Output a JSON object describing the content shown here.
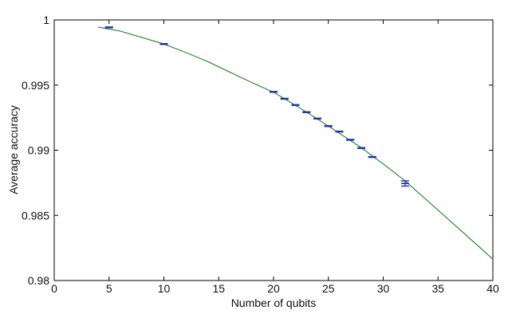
{
  "chart_data": {
    "type": "line",
    "title": "",
    "xlabel": "Number of qubits",
    "ylabel": "Average accuracy",
    "xlim": [
      0,
      40
    ],
    "ylim": [
      0.98,
      1.0
    ],
    "x_ticks": [
      0,
      5,
      10,
      15,
      20,
      25,
      30,
      35,
      40
    ],
    "y_ticks": [
      0.98,
      0.985,
      0.99,
      0.995,
      1.0
    ],
    "x_tick_labels": [
      "0",
      "5",
      "10",
      "15",
      "20",
      "25",
      "30",
      "35",
      "40"
    ],
    "y_tick_labels": [
      "0.98",
      "0.985",
      "0.99",
      "0.995",
      "1"
    ],
    "grid": false,
    "legend": "none",
    "series": [
      {
        "kind": "fit-curve",
        "color": "#2e8b2e",
        "x": [
          4,
          6,
          8,
          10,
          12,
          14,
          16,
          18,
          20,
          22,
          24,
          26,
          28,
          30,
          32,
          34,
          36,
          38,
          40
        ],
        "y": [
          0.99945,
          0.99915,
          0.99865,
          0.99815,
          0.9975,
          0.9968,
          0.996,
          0.9952,
          0.99445,
          0.99345,
          0.9924,
          0.9913,
          0.9902,
          0.98895,
          0.98765,
          0.98615,
          0.98465,
          0.98315,
          0.98165
        ]
      },
      {
        "kind": "errorbar",
        "color": "#1f2fb5",
        "x": [
          5,
          10,
          20,
          21,
          22,
          23,
          24,
          25,
          26,
          27,
          28,
          29,
          32
        ],
        "y": [
          0.99943,
          0.99815,
          0.99448,
          0.99395,
          0.99347,
          0.99292,
          0.99243,
          0.99185,
          0.99143,
          0.9908,
          0.99017,
          0.98948,
          0.98745
        ],
        "err": [
          3e-05,
          3e-05,
          3e-05,
          3e-05,
          3e-05,
          3e-05,
          3e-05,
          3e-05,
          3e-05,
          3e-05,
          3e-05,
          3e-05,
          0.0002
        ]
      }
    ]
  }
}
